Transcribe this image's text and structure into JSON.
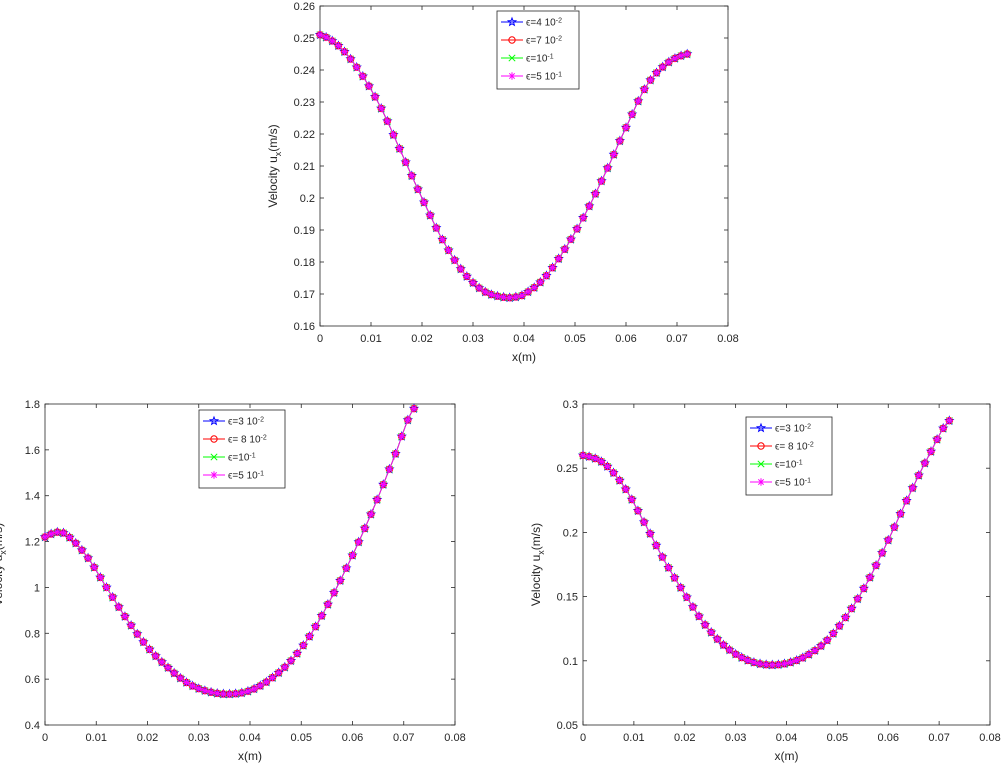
{
  "chart_data": [
    {
      "id": "top",
      "type": "line",
      "xlabel": "x(m)",
      "ylabel": "Velocity u",
      "ylabel_sub": "x",
      "ylabel_unit": "(m/s)",
      "xlim": [
        0,
        0.08
      ],
      "ylim": [
        0.16,
        0.26
      ],
      "xticks": [
        0,
        0.01,
        0.02,
        0.03,
        0.04,
        0.05,
        0.06,
        0.07,
        0.08
      ],
      "yticks": [
        0.16,
        0.17,
        0.18,
        0.19,
        0.2,
        0.21,
        0.22,
        0.23,
        0.24,
        0.25,
        0.26
      ],
      "grid": false,
      "legend_position": "top-center",
      "x": [
        0,
        0.004,
        0.008,
        0.012,
        0.016,
        0.02,
        0.024,
        0.028,
        0.032,
        0.036,
        0.038,
        0.04,
        0.044,
        0.048,
        0.052,
        0.056,
        0.06,
        0.064,
        0.068,
        0.072
      ],
      "series": [
        {
          "name": "ϵ=4 10^-2",
          "label_main": "ϵ=4 10",
          "label_exp": "-2",
          "color": "#0000ff",
          "marker": "star",
          "values": [
            0.251,
            0.247,
            0.239,
            0.228,
            0.214,
            0.2,
            0.187,
            0.177,
            0.171,
            0.169,
            0.169,
            0.17,
            0.175,
            0.184,
            0.195,
            0.208,
            0.222,
            0.235,
            0.242,
            0.245
          ]
        },
        {
          "name": "ϵ=7 10^-2",
          "label_main": "ϵ=7 10",
          "label_exp": "-2",
          "color": "#ff0000",
          "marker": "circle",
          "values": [
            0.251,
            0.247,
            0.239,
            0.228,
            0.214,
            0.2,
            0.187,
            0.177,
            0.171,
            0.169,
            0.169,
            0.17,
            0.175,
            0.184,
            0.195,
            0.208,
            0.222,
            0.235,
            0.242,
            0.245
          ]
        },
        {
          "name": "ϵ=10^-1",
          "label_main": "ϵ=10",
          "label_exp": "-1",
          "color": "#00ff00",
          "marker": "x",
          "values": [
            0.251,
            0.247,
            0.239,
            0.228,
            0.214,
            0.2,
            0.187,
            0.177,
            0.171,
            0.169,
            0.169,
            0.17,
            0.175,
            0.184,
            0.195,
            0.208,
            0.222,
            0.235,
            0.242,
            0.245
          ]
        },
        {
          "name": "ϵ=5 10^-1",
          "label_main": "ϵ=5 10",
          "label_exp": "-1",
          "color": "#ff00ff",
          "marker": "asterisk",
          "values": [
            0.251,
            0.247,
            0.239,
            0.228,
            0.214,
            0.2,
            0.187,
            0.177,
            0.171,
            0.169,
            0.169,
            0.17,
            0.175,
            0.184,
            0.195,
            0.208,
            0.222,
            0.235,
            0.242,
            0.245
          ]
        }
      ]
    },
    {
      "id": "bottom-left",
      "type": "line",
      "xlabel": "x(m)",
      "ylabel": "Velocity u",
      "ylabel_sub": "x",
      "ylabel_unit": "(m/s)",
      "xlim": [
        0,
        0.08
      ],
      "ylim": [
        0.4,
        1.8
      ],
      "xticks": [
        0,
        0.01,
        0.02,
        0.03,
        0.04,
        0.05,
        0.06,
        0.07,
        0.08
      ],
      "yticks": [
        0.4,
        0.6,
        0.8,
        1,
        1.2,
        1.4,
        1.6,
        1.8
      ],
      "grid": false,
      "legend_position": "top-center",
      "x": [
        0,
        0.002,
        0.004,
        0.008,
        0.012,
        0.016,
        0.02,
        0.024,
        0.028,
        0.032,
        0.036,
        0.04,
        0.044,
        0.048,
        0.052,
        0.056,
        0.06,
        0.064,
        0.068,
        0.072
      ],
      "series": [
        {
          "name": "ϵ=3 10^-2",
          "label_main": "ϵ=3 10",
          "label_exp": "-2",
          "color": "#0000ff",
          "marker": "star",
          "values": [
            1.22,
            1.24,
            1.23,
            1.14,
            1.0,
            0.86,
            0.74,
            0.65,
            0.58,
            0.545,
            0.535,
            0.55,
            0.6,
            0.68,
            0.8,
            0.96,
            1.14,
            1.34,
            1.56,
            1.78
          ]
        },
        {
          "name": "ϵ= 8 10^-2",
          "label_main": "ϵ= 8 10",
          "label_exp": "-2",
          "color": "#ff0000",
          "marker": "circle",
          "values": [
            1.22,
            1.24,
            1.23,
            1.14,
            1.0,
            0.86,
            0.74,
            0.65,
            0.58,
            0.545,
            0.535,
            0.55,
            0.6,
            0.68,
            0.8,
            0.96,
            1.14,
            1.34,
            1.56,
            1.78
          ]
        },
        {
          "name": "ϵ=10^-1",
          "label_main": "ϵ=10",
          "label_exp": "-1",
          "color": "#00ff00",
          "marker": "x",
          "values": [
            1.22,
            1.24,
            1.23,
            1.14,
            1.0,
            0.86,
            0.74,
            0.65,
            0.58,
            0.545,
            0.535,
            0.55,
            0.6,
            0.68,
            0.8,
            0.96,
            1.14,
            1.34,
            1.56,
            1.78
          ]
        },
        {
          "name": "ϵ=5 10^-1",
          "label_main": "ϵ=5 10",
          "label_exp": "-1",
          "color": "#ff00ff",
          "marker": "asterisk",
          "values": [
            1.22,
            1.24,
            1.23,
            1.14,
            1.0,
            0.86,
            0.74,
            0.65,
            0.58,
            0.545,
            0.535,
            0.55,
            0.6,
            0.68,
            0.8,
            0.96,
            1.14,
            1.34,
            1.56,
            1.78
          ]
        }
      ]
    },
    {
      "id": "bottom-right",
      "type": "line",
      "xlabel": "x(m)",
      "ylabel": "Velocity u",
      "ylabel_sub": "x",
      "ylabel_unit": "(m/s)",
      "xlim": [
        0,
        0.08
      ],
      "ylim": [
        0.05,
        0.3
      ],
      "xticks": [
        0,
        0.01,
        0.02,
        0.03,
        0.04,
        0.05,
        0.06,
        0.07,
        0.08
      ],
      "yticks": [
        0.05,
        0.1,
        0.15,
        0.2,
        0.25,
        0.3
      ],
      "grid": false,
      "legend_position": "top-center",
      "x": [
        0,
        0.004,
        0.008,
        0.012,
        0.016,
        0.02,
        0.024,
        0.028,
        0.032,
        0.036,
        0.04,
        0.044,
        0.048,
        0.052,
        0.056,
        0.06,
        0.064,
        0.068,
        0.072
      ],
      "series": [
        {
          "name": "ϵ=3 10^-2",
          "label_main": "ϵ=3 10",
          "label_exp": "-2",
          "color": "#0000ff",
          "marker": "star",
          "values": [
            0.26,
            0.254,
            0.236,
            0.208,
            0.178,
            0.152,
            0.128,
            0.111,
            0.101,
            0.097,
            0.098,
            0.104,
            0.116,
            0.136,
            0.162,
            0.194,
            0.228,
            0.26,
            0.287
          ]
        },
        {
          "name": "ϵ= 8 10^-2",
          "label_main": "ϵ= 8 10",
          "label_exp": "-2",
          "color": "#ff0000",
          "marker": "circle",
          "values": [
            0.26,
            0.254,
            0.236,
            0.208,
            0.178,
            0.152,
            0.128,
            0.111,
            0.101,
            0.097,
            0.098,
            0.104,
            0.116,
            0.136,
            0.162,
            0.194,
            0.228,
            0.26,
            0.287
          ]
        },
        {
          "name": "ϵ=10^-1",
          "label_main": "ϵ=10",
          "label_exp": "-1",
          "color": "#00ff00",
          "marker": "x",
          "values": [
            0.26,
            0.254,
            0.236,
            0.208,
            0.178,
            0.152,
            0.128,
            0.111,
            0.101,
            0.097,
            0.098,
            0.104,
            0.116,
            0.136,
            0.162,
            0.194,
            0.228,
            0.26,
            0.287
          ]
        },
        {
          "name": "ϵ=5 10^-1",
          "label_main": "ϵ=5 10",
          "label_exp": "-1",
          "color": "#ff00ff",
          "marker": "asterisk",
          "values": [
            0.26,
            0.254,
            0.236,
            0.208,
            0.178,
            0.152,
            0.128,
            0.111,
            0.101,
            0.097,
            0.098,
            0.104,
            0.116,
            0.136,
            0.162,
            0.194,
            0.228,
            0.26,
            0.287
          ]
        }
      ]
    }
  ]
}
